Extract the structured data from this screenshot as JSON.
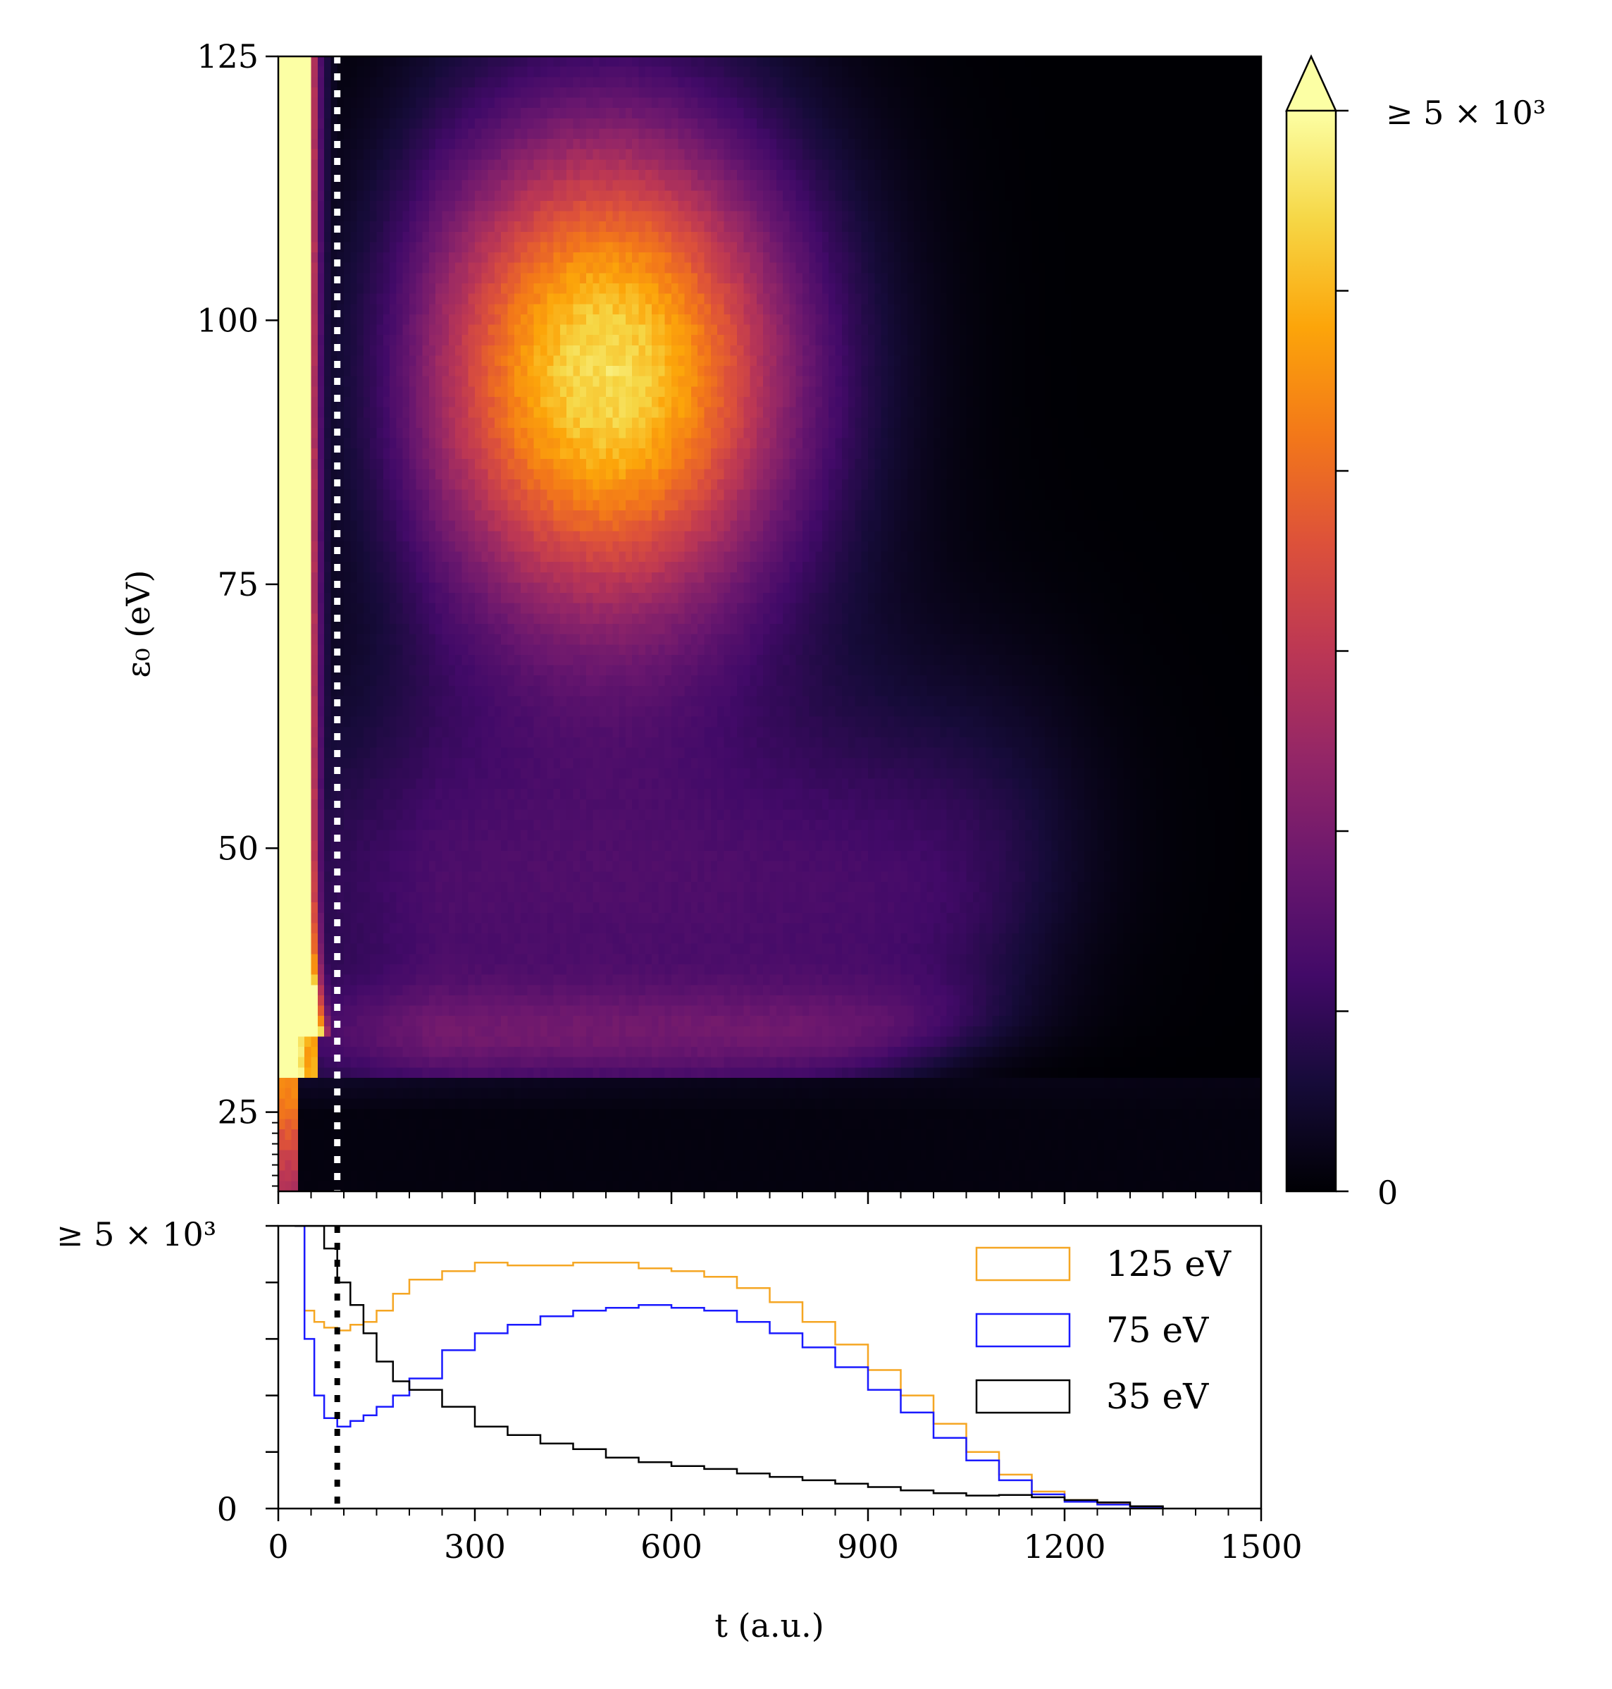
{
  "chart_data": [
    {
      "type": "heatmap",
      "colormap": "inferno",
      "xlabel": "",
      "ylabel": "ε₀ (eV)",
      "xlim": [
        0,
        1500
      ],
      "ylim": [
        17.5,
        125
      ],
      "y_ticks": [
        25,
        50,
        75,
        100,
        125
      ],
      "y_tick_labels": [
        "25",
        "50",
        "75",
        "100",
        "125"
      ],
      "y_minor_low_ticks": [
        18,
        19,
        20,
        21,
        22,
        23,
        24
      ],
      "x_ticks": [
        0,
        300,
        600,
        900,
        1200,
        1500
      ],
      "colorbar": {
        "min_label": "0",
        "max_label": "≥ 5 × 10³",
        "range": [
          0,
          5000
        ],
        "extend": "max",
        "n_ticks": 6
      },
      "marker_line": {
        "t": 90,
        "style": "dotted",
        "color": "#ffffff"
      },
      "features": [
        {
          "description": "bright band",
          "t_range": [
            0,
            60
          ],
          "eps_range": [
            32,
            125
          ]
        },
        {
          "description": "broad maximum",
          "t_center": 500,
          "eps_center": 95
        },
        {
          "description": "low-energy cutoff",
          "eps": 28
        }
      ]
    },
    {
      "type": "line",
      "step": true,
      "xlabel": "t (a.u.)",
      "ylabel_top": "≥ 5 × 10³",
      "ylabel_bottom": "0",
      "xlim": [
        0,
        1500
      ],
      "ylim": [
        0,
        5000
      ],
      "x_ticks": [
        0,
        300,
        600,
        900,
        1200,
        1500
      ],
      "x_tick_labels": [
        "0",
        "300",
        "600",
        "900",
        "1200",
        "1500"
      ],
      "marker_line": {
        "t": 90,
        "style": "dotted",
        "color": "#000000"
      },
      "x": [
        25,
        40,
        55,
        70,
        90,
        110,
        130,
        150,
        175,
        200,
        250,
        300,
        350,
        400,
        450,
        500,
        550,
        600,
        650,
        700,
        750,
        800,
        850,
        900,
        950,
        1000,
        1050,
        1100,
        1150,
        1200,
        1250,
        1300,
        1350
      ],
      "series": [
        {
          "name": "125 eV",
          "color": "#f5a623",
          "values": [
            5000,
            3500,
            3300,
            3200,
            3150,
            3250,
            3300,
            3500,
            3800,
            4050,
            4200,
            4350,
            4300,
            4300,
            4350,
            4350,
            4250,
            4200,
            4100,
            3900,
            3650,
            3300,
            2900,
            2450,
            2000,
            1500,
            1000,
            600,
            300,
            150,
            80,
            30,
            0
          ]
        },
        {
          "name": "75 eV",
          "color": "#1a1aff",
          "values": [
            5000,
            3000,
            2000,
            1600,
            1450,
            1550,
            1650,
            1800,
            2000,
            2300,
            2800,
            3100,
            3250,
            3400,
            3500,
            3550,
            3600,
            3550,
            3500,
            3300,
            3100,
            2850,
            2500,
            2100,
            1700,
            1250,
            850,
            500,
            250,
            120,
            70,
            30,
            0
          ]
        },
        {
          "name": "35 eV",
          "color": "#000000",
          "values": [
            5000,
            5000,
            5000,
            4600,
            4000,
            3600,
            3100,
            2600,
            2250,
            2100,
            1800,
            1450,
            1300,
            1150,
            1050,
            900,
            820,
            750,
            700,
            620,
            560,
            500,
            440,
            380,
            320,
            270,
            230,
            240,
            200,
            150,
            110,
            40,
            0
          ]
        }
      ],
      "legend": {
        "location": "top-right",
        "entries": [
          "125 eV",
          "75 eV",
          "35 eV"
        ]
      }
    }
  ]
}
